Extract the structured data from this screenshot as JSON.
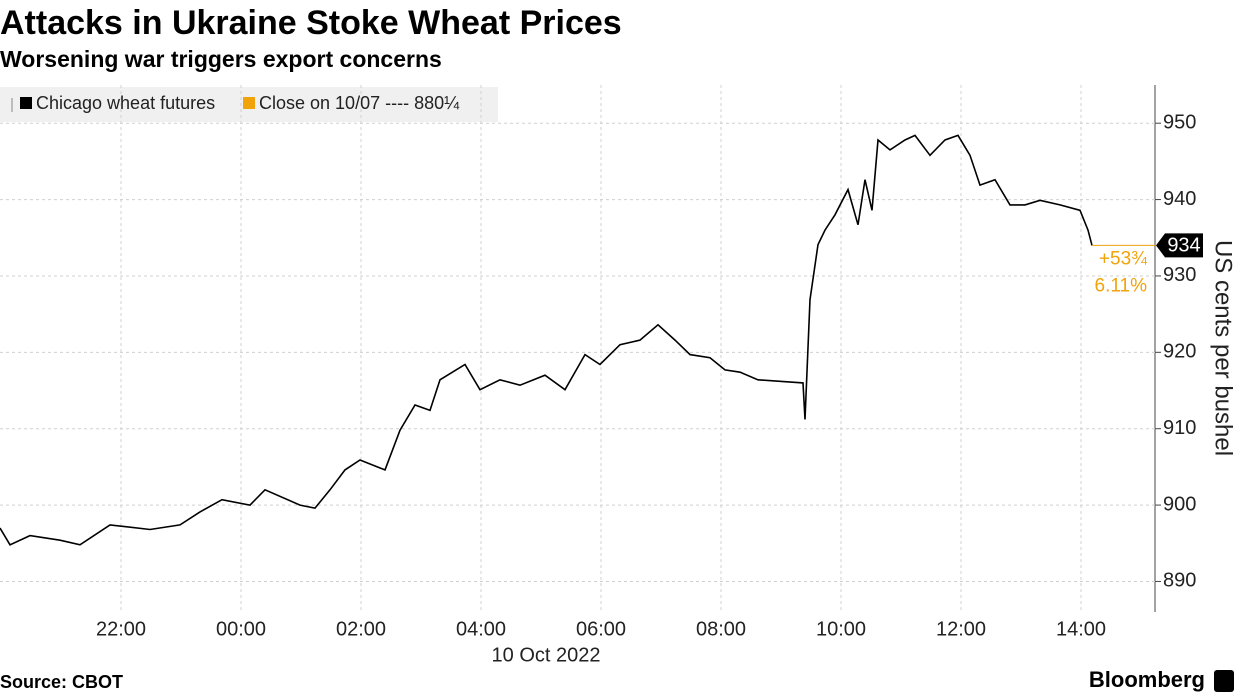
{
  "chart_data": {
    "type": "line",
    "title": "Attacks in Ukraine Stoke Wheat Prices",
    "subtitle": "Worsening war triggers export concerns",
    "y_label": "US cents per bushel",
    "x_date_label": "10 Oct 2022",
    "source": "Source: CBOT",
    "brand": "Bloomberg",
    "grid": true,
    "x": [
      "2022-10-09T19:59",
      "2022-10-09T20:09",
      "2022-10-09T20:29",
      "2022-10-09T20:59",
      "2022-10-09T21:19",
      "2022-10-09T21:49",
      "2022-10-09T22:29",
      "2022-10-09T22:59",
      "2022-10-09T23:19",
      "2022-10-09T23:41",
      "2022-10-10T00:09",
      "2022-10-10T00:24",
      "2022-10-10T00:59",
      "2022-10-10T01:14",
      "2022-10-10T01:29",
      "2022-10-10T01:44",
      "2022-10-10T01:59",
      "2022-10-10T02:24",
      "2022-10-10T02:39",
      "2022-10-10T02:54",
      "2022-10-10T03:09",
      "2022-10-10T03:19",
      "2022-10-10T03:44",
      "2022-10-10T03:59",
      "2022-10-10T04:19",
      "2022-10-10T04:39",
      "2022-10-10T05:04",
      "2022-10-10T05:24",
      "2022-10-10T05:44",
      "2022-10-10T05:59",
      "2022-10-10T06:19",
      "2022-10-10T06:39",
      "2022-10-10T06:57",
      "2022-10-10T07:14",
      "2022-10-10T07:29",
      "2022-10-10T07:49",
      "2022-10-10T08:04",
      "2022-10-10T08:19",
      "2022-10-10T08:37",
      "2022-10-10T09:22",
      "2022-10-10T09:24",
      "2022-10-10T09:29",
      "2022-10-10T09:37",
      "2022-10-10T09:44",
      "2022-10-10T09:54",
      "2022-10-10T10:07",
      "2022-10-10T10:17",
      "2022-10-10T10:24",
      "2022-10-10T10:31",
      "2022-10-10T10:37",
      "2022-10-10T10:49",
      "2022-10-10T11:04",
      "2022-10-10T11:14",
      "2022-10-10T11:29",
      "2022-10-10T11:44",
      "2022-10-10T11:57",
      "2022-10-10T12:09",
      "2022-10-10T12:19",
      "2022-10-10T12:34",
      "2022-10-10T12:49",
      "2022-10-10T13:04",
      "2022-10-10T13:19",
      "2022-10-10T13:39",
      "2022-10-10T13:59",
      "2022-10-10T14:07",
      "2022-10-10T14:11"
    ],
    "series": [
      {
        "name": "Chicago wheat futures",
        "color": "#000000",
        "values": [
          897,
          894.8,
          896,
          895.4,
          894.8,
          897.4,
          896.8,
          897.4,
          899.1,
          900.7,
          900,
          902,
          900,
          899.6,
          902,
          904.6,
          905.9,
          904.6,
          909.8,
          913.1,
          912.4,
          916.4,
          918.4,
          915.1,
          916.4,
          915.7,
          917,
          915.1,
          919.7,
          918.4,
          921,
          921.6,
          923.6,
          921.6,
          919.7,
          919.3,
          917.7,
          917.4,
          916.4,
          916,
          911.2,
          926.9,
          934.1,
          936,
          938,
          941.3,
          936.7,
          942.6,
          938.6,
          947.8,
          946.5,
          947.8,
          948.4,
          945.8,
          947.8,
          948.4,
          945.8,
          941.9,
          942.6,
          939.3,
          939.3,
          939.9,
          939.3,
          938.6,
          936,
          934
        ]
      }
    ],
    "reference_line": {
      "label": "Close on 10/07 ---- 880¼",
      "value": 880.25,
      "color": "#f0a30a"
    },
    "last_value_label": "934",
    "change_label": "+53¾",
    "change_pct_label": "6.11%",
    "xlim": [
      "2022-10-09T19:59",
      "2022-10-10T15:14"
    ],
    "xticks": [
      {
        "value": "2022-10-09T22:00",
        "label": "22:00"
      },
      {
        "value": "2022-10-10T00:00",
        "label": "00:00"
      },
      {
        "value": "2022-10-10T02:00",
        "label": "02:00"
      },
      {
        "value": "2022-10-10T04:00",
        "label": "04:00"
      },
      {
        "value": "2022-10-10T06:00",
        "label": "06:00"
      },
      {
        "value": "2022-10-10T08:00",
        "label": "08:00"
      },
      {
        "value": "2022-10-10T10:00",
        "label": "10:00"
      },
      {
        "value": "2022-10-10T12:00",
        "label": "12:00"
      },
      {
        "value": "2022-10-10T14:00",
        "label": "14:00"
      }
    ],
    "ylim": [
      886,
      955
    ],
    "yticks": [
      890,
      900,
      910,
      920,
      930,
      940,
      950
    ]
  }
}
